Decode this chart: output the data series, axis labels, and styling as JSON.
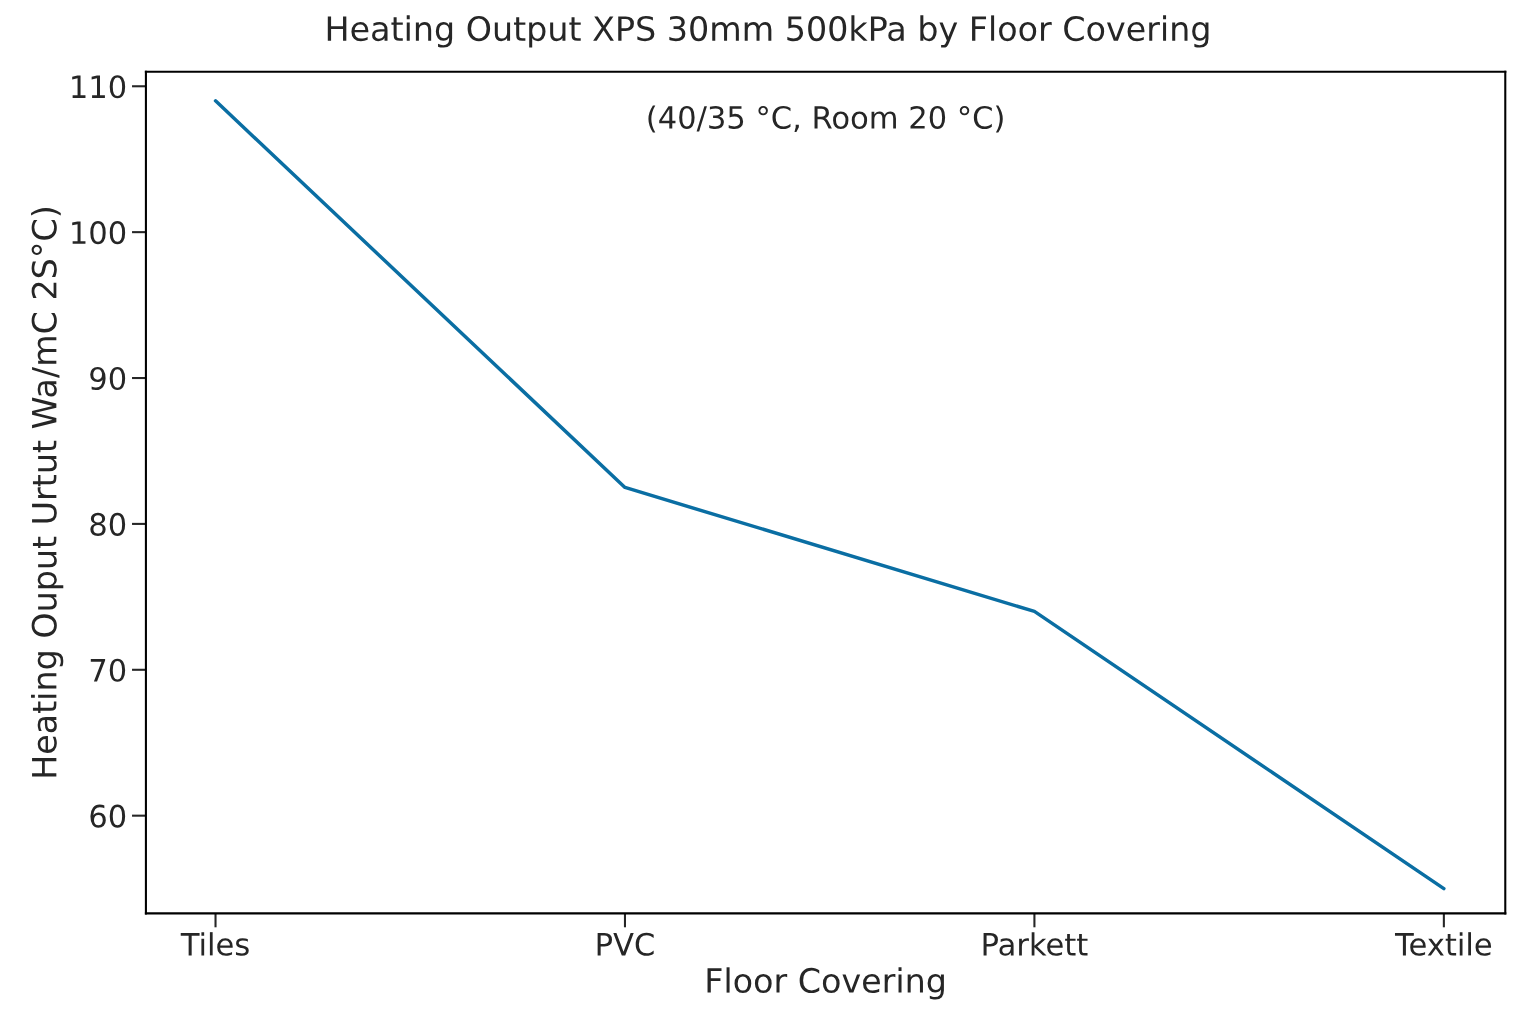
{
  "chart_data": {
    "type": "line",
    "title": "Heating Output XPS 30mm 500kPa by Floor Covering",
    "subtitle": "(40/35 °C, Room 20 °C)",
    "xlabel": "Floor Covering",
    "ylabel": "Heating Ouput Urtut Wa/mC 2S°C)",
    "categories": [
      "Tiles",
      "PVC",
      "Parkett",
      "Textile"
    ],
    "series": [
      {
        "color": "#0a6ea3",
        "values": [
          109.0,
          82.5,
          74.0,
          55.0
        ]
      }
    ],
    "ylim": [
      53.3,
      111.0
    ],
    "yticks": [
      60,
      70,
      80,
      90,
      100,
      110
    ],
    "grid": false,
    "legend": false,
    "marker": "none",
    "line_style": "solid"
  }
}
